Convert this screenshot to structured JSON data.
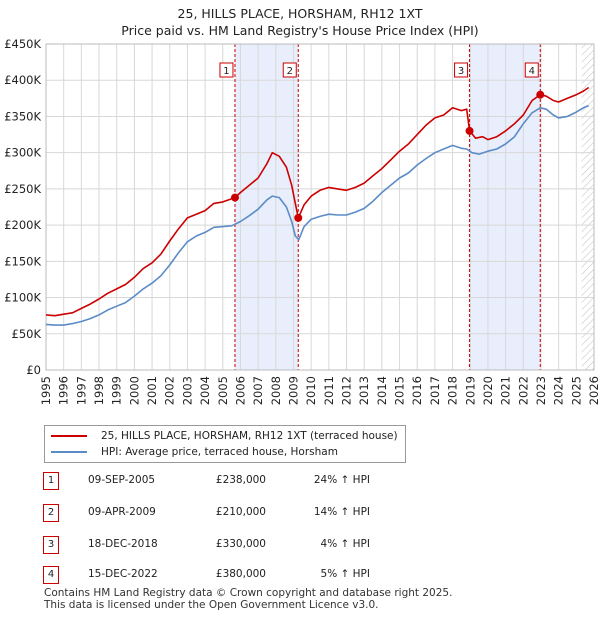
{
  "chart_data": {
    "type": "line",
    "title": "25, HILLS PLACE, HORSHAM, RH12 1XT",
    "subtitle": "Price paid vs. HM Land Registry's House Price Index (HPI)",
    "ylim": [
      0,
      450000
    ],
    "xlim": [
      1995,
      2026
    ],
    "y_ticks": [
      {
        "value": 0,
        "label": "£0"
      },
      {
        "value": 50000,
        "label": "£50K"
      },
      {
        "value": 100000,
        "label": "£100K"
      },
      {
        "value": 150000,
        "label": "£150K"
      },
      {
        "value": 200000,
        "label": "£200K"
      },
      {
        "value": 250000,
        "label": "£250K"
      },
      {
        "value": 300000,
        "label": "£300K"
      },
      {
        "value": 350000,
        "label": "£350K"
      },
      {
        "value": 400000,
        "label": "£400K"
      },
      {
        "value": 450000,
        "label": "£450K"
      }
    ],
    "x_ticks": [
      "1995",
      "1996",
      "1997",
      "1998",
      "1999",
      "2000",
      "2001",
      "2002",
      "2003",
      "2004",
      "2005",
      "2006",
      "2007",
      "2008",
      "2009",
      "2010",
      "2011",
      "2012",
      "2013",
      "2014",
      "2015",
      "2016",
      "2017",
      "2018",
      "2019",
      "2020",
      "2021",
      "2022",
      "2023",
      "2024",
      "2025",
      "2026"
    ],
    "shaded_ranges": [
      [
        2005.69,
        2009.27
      ],
      [
        2018.96,
        2022.96
      ]
    ],
    "forecast_from": 2025.3,
    "series": [
      {
        "name": "25, HILLS PLACE, HORSHAM, RH12 1XT (terraced house)",
        "color": "#cc0000",
        "x": [
          1995,
          1995.5,
          1996,
          1996.5,
          1997,
          1997.5,
          1998,
          1998.5,
          1999,
          1999.5,
          2000,
          2000.5,
          2001,
          2001.5,
          2002,
          2002.5,
          2003,
          2003.5,
          2004,
          2004.5,
          2005,
          2005.69,
          2006,
          2006.5,
          2007,
          2007.5,
          2007.8,
          2008.2,
          2008.6,
          2008.9,
          2009.1,
          2009.27,
          2009.6,
          2010,
          2010.5,
          2011,
          2011.5,
          2012,
          2012.5,
          2013,
          2013.5,
          2014,
          2014.5,
          2015,
          2015.5,
          2016,
          2016.5,
          2017,
          2017.5,
          2018,
          2018.5,
          2018.8,
          2018.96,
          2019.3,
          2019.7,
          2020,
          2020.5,
          2021,
          2021.5,
          2022,
          2022.5,
          2022.96,
          2023.3,
          2023.7,
          2024,
          2024.5,
          2025,
          2025.4,
          2025.7
        ],
        "values": [
          76000,
          75000,
          77000,
          79000,
          85000,
          91000,
          98000,
          106000,
          112000,
          118000,
          128000,
          140000,
          148000,
          160000,
          178000,
          195000,
          210000,
          215000,
          220000,
          230000,
          232000,
          238000,
          245000,
          255000,
          265000,
          285000,
          300000,
          295000,
          280000,
          255000,
          230000,
          210000,
          228000,
          240000,
          248000,
          252000,
          250000,
          248000,
          252000,
          258000,
          268000,
          278000,
          290000,
          302000,
          312000,
          325000,
          338000,
          348000,
          352000,
          362000,
          358000,
          360000,
          330000,
          320000,
          322000,
          318000,
          322000,
          330000,
          340000,
          352000,
          372000,
          380000,
          378000,
          372000,
          370000,
          375000,
          380000,
          385000,
          390000
        ]
      },
      {
        "name": "HPI: Average price, terraced house, Horsham",
        "color": "#5b8cc8",
        "x": [
          1995,
          1995.5,
          1996,
          1996.5,
          1997,
          1997.5,
          1998,
          1998.5,
          1999,
          1999.5,
          2000,
          2000.5,
          2001,
          2001.5,
          2002,
          2002.5,
          2003,
          2003.5,
          2004,
          2004.5,
          2005,
          2005.5,
          2006,
          2006.5,
          2007,
          2007.5,
          2007.8,
          2008.2,
          2008.6,
          2008.9,
          2009.1,
          2009.3,
          2009.6,
          2010,
          2010.5,
          2011,
          2011.5,
          2012,
          2012.5,
          2013,
          2013.5,
          2014,
          2014.5,
          2015,
          2015.5,
          2016,
          2016.5,
          2017,
          2017.5,
          2018,
          2018.5,
          2018.8,
          2019.1,
          2019.5,
          2020,
          2020.5,
          2021,
          2021.5,
          2022,
          2022.5,
          2022.96,
          2023.3,
          2023.7,
          2024,
          2024.5,
          2025,
          2025.4,
          2025.7
        ],
        "values": [
          63000,
          62000,
          62000,
          64000,
          67000,
          71000,
          76000,
          83000,
          88000,
          93000,
          102000,
          112000,
          120000,
          130000,
          145000,
          162000,
          177000,
          185000,
          190000,
          197000,
          198000,
          199000,
          205000,
          213000,
          222000,
          235000,
          240000,
          238000,
          225000,
          205000,
          185000,
          180000,
          198000,
          208000,
          212000,
          215000,
          214000,
          214000,
          218000,
          223000,
          233000,
          245000,
          255000,
          265000,
          272000,
          283000,
          292000,
          300000,
          305000,
          310000,
          306000,
          305000,
          300000,
          298000,
          302000,
          305000,
          312000,
          322000,
          340000,
          355000,
          362000,
          360000,
          352000,
          348000,
          350000,
          356000,
          362000,
          365000
        ]
      }
    ],
    "sale_markers": [
      {
        "id": "1",
        "x": 2005.69,
        "value": 238000
      },
      {
        "id": "2",
        "x": 2009.27,
        "value": 210000
      },
      {
        "id": "3",
        "x": 2018.96,
        "value": 330000
      },
      {
        "id": "4",
        "x": 2022.96,
        "value": 380000
      }
    ]
  },
  "legend": {
    "property": "25, HILLS PLACE, HORSHAM, RH12 1XT (terraced house)",
    "hpi": "HPI: Average price, terraced house, Horsham"
  },
  "sales": [
    {
      "id": "1",
      "date": "09-SEP-2005",
      "price": "£238,000",
      "hpi": "24% ↑ HPI"
    },
    {
      "id": "2",
      "date": "09-APR-2009",
      "price": "£210,000",
      "hpi": "14% ↑ HPI"
    },
    {
      "id": "3",
      "date": "18-DEC-2018",
      "price": "£330,000",
      "hpi": "4% ↑ HPI"
    },
    {
      "id": "4",
      "date": "15-DEC-2022",
      "price": "£380,000",
      "hpi": "5% ↑ HPI"
    }
  ],
  "footer": {
    "line1": "Contains HM Land Registry data © Crown copyright and database right 2025.",
    "line2": "This data is licensed under the Open Government Licence v3.0."
  },
  "colors": {
    "property": "#cc0000",
    "hpi": "#5b8cc8",
    "shade": "#e8eefb",
    "grid": "#d8d8d8"
  }
}
